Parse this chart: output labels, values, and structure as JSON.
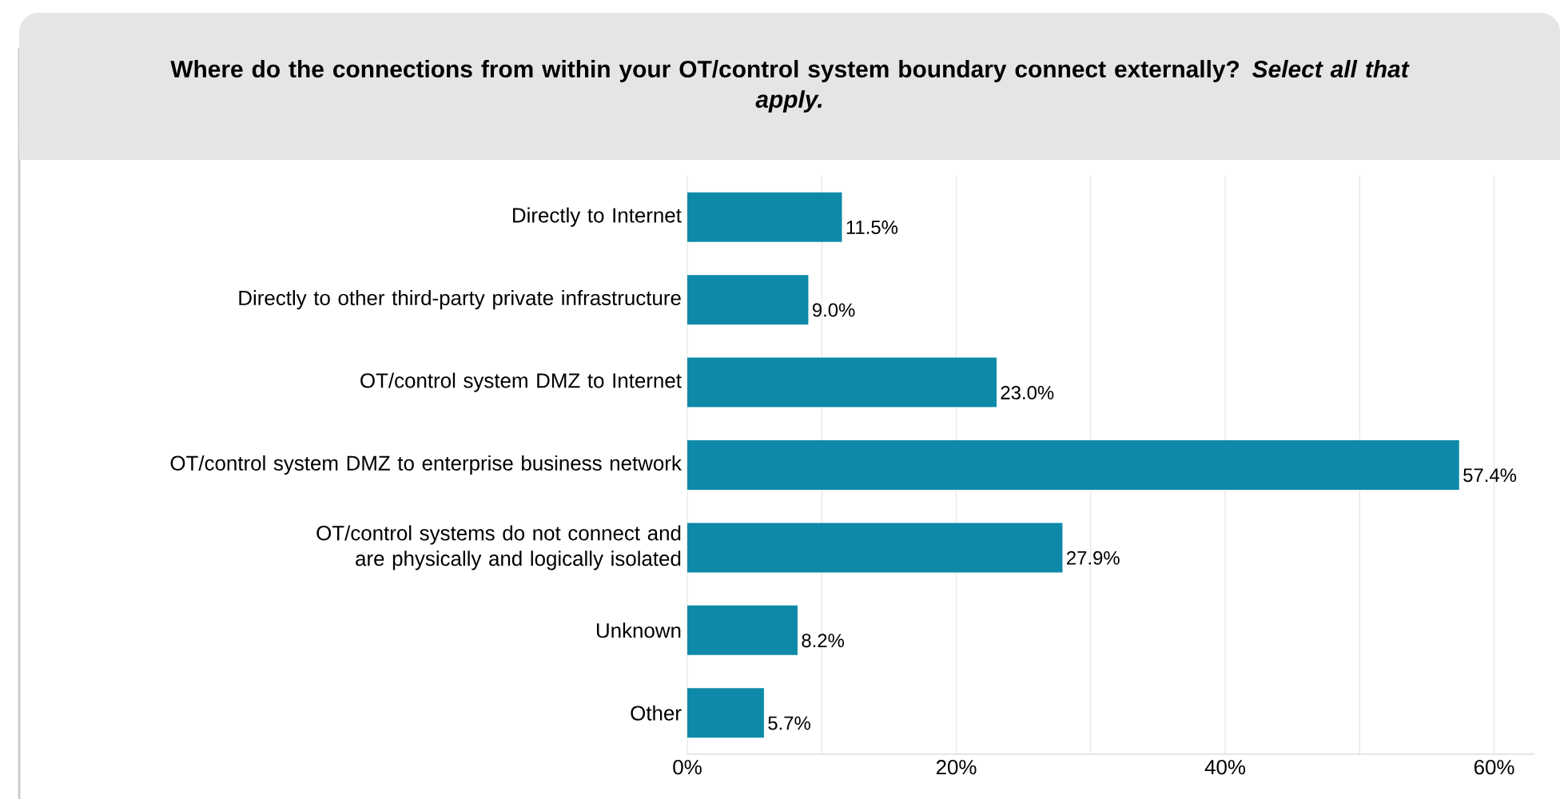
{
  "chart_data": {
    "type": "bar",
    "orientation": "horizontal",
    "title": "Where do the connections from within your OT/control system boundary connect externally? *Select all that apply.*",
    "categories": [
      "Directly to Internet",
      "Directly to other third-party private infrastructure",
      "OT/control system DMZ to Internet",
      "OT/control system DMZ to enterprise business network",
      "OT/control systems do not connect and are physically and logically isolated",
      "Unknown",
      "Other"
    ],
    "values": [
      11.5,
      9.0,
      23.0,
      57.4,
      27.9,
      8.2,
      5.7
    ],
    "value_labels": [
      "11.5%",
      "9.0%",
      "23.0%",
      "57.4%",
      "27.9%",
      "8.2%",
      "5.7%"
    ],
    "color": "#0e8aa8",
    "xlim": [
      0,
      63
    ],
    "xticks": [
      {
        "value": 0,
        "label": "0%"
      },
      {
        "value": 10,
        "label": null
      },
      {
        "value": 20,
        "label": "20%"
      },
      {
        "value": 30,
        "label": null
      },
      {
        "value": 40,
        "label": "40%"
      },
      {
        "value": 50,
        "label": null
      },
      {
        "value": 60,
        "label": "60%"
      }
    ],
    "grid": "x"
  }
}
